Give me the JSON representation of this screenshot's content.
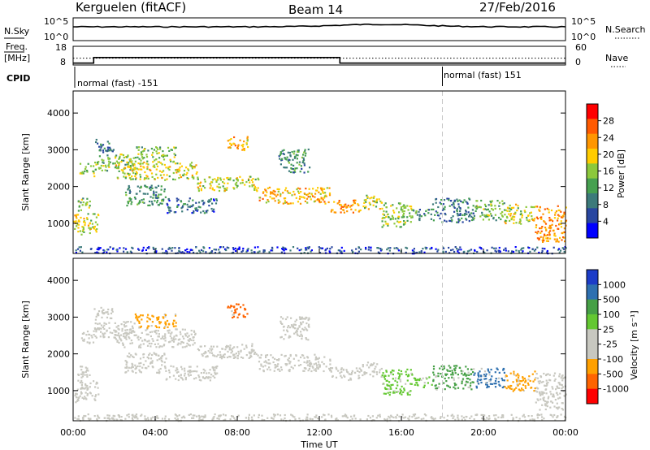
{
  "header": {
    "station": "Kerguelen (fitACF)",
    "beam": "Beam 14",
    "date": "27/Feb/2016"
  },
  "noise_panel": {
    "left_label": "N.Sky",
    "right_label": "N.Search",
    "left_ticks": [
      "10^5",
      "10^0"
    ],
    "right_ticks": [
      "10^5",
      "10^0"
    ]
  },
  "freq_panel": {
    "left_label_1": "Freq.",
    "left_label_2": "[MHz]",
    "left_ticks": [
      "18",
      "8"
    ],
    "right_label": "Nave",
    "right_ticks": [
      "60",
      "0"
    ]
  },
  "cpid_panel": {
    "label": "CPID",
    "modes": [
      {
        "name": "normal (fast) -151",
        "start_hour": 0
      },
      {
        "name": "normal (fast) 151",
        "start_hour": 18
      }
    ]
  },
  "power_panel": {
    "ylabel": "Slant Range [km]",
    "colorbar_label": "Power [dB]",
    "colorbar_ticks": [
      "28",
      "24",
      "20",
      "16",
      "12",
      "8",
      "4"
    ]
  },
  "velocity_panel": {
    "ylabel": "Slant Range [km]",
    "colorbar_label": "Velocity [m s⁻¹]",
    "colorbar_ticks": [
      "1000",
      "500",
      "100",
      "25",
      "-25",
      "-100",
      "-500",
      "-1000"
    ]
  },
  "xaxis": {
    "label": "Time UT",
    "ticks": [
      "00:00",
      "04:00",
      "08:00",
      "12:00",
      "16:00",
      "20:00",
      "00:00"
    ]
  },
  "chart_data": {
    "type": "heatmap",
    "x_range_hours": [
      0,
      24
    ],
    "y_range_km": [
      180,
      4600
    ],
    "y_ticks_km": [
      1000,
      2000,
      3000,
      4000
    ],
    "x_tick_hours": [
      0,
      4,
      8,
      12,
      16,
      20,
      24
    ],
    "grid": false,
    "frequency_mhz": [
      {
        "start": 0,
        "end": 1,
        "value": 9
      },
      {
        "start": 1,
        "end": 13,
        "value": 12
      },
      {
        "start": 13,
        "end": 24,
        "value": 9
      }
    ],
    "nave_reference": 22,
    "power_colors": [
      "#0000ff",
      "#2846a0",
      "#3c7a7a",
      "#46a050",
      "#8cc83c",
      "#ffcc00",
      "#ff9600",
      "#ff5a00",
      "#ff0000"
    ],
    "velocity_colors": {
      "1000": "#1c3cc8",
      "500": "#2e70b0",
      "100": "#46a046",
      "50": "#64c832",
      "25": "#c8c8c0",
      "-25": "#c8c8c0",
      "-100": "#ffa000",
      "-500": "#ff6400",
      "-1000": "#ff0000"
    },
    "echo_regions": [
      {
        "t0": 0.0,
        "t1": 1.2,
        "r0": 700,
        "r1": 1300,
        "power": 20,
        "velocity": -25
      },
      {
        "t0": 0.2,
        "t1": 0.8,
        "r0": 1350,
        "r1": 1700,
        "power": 16,
        "velocity": -25
      },
      {
        "t0": 0.3,
        "t1": 1.0,
        "r0": 2300,
        "r1": 2650,
        "power": 18,
        "velocity": 25
      },
      {
        "t0": 1.0,
        "t1": 3.0,
        "r0": 2450,
        "r1": 2900,
        "power": 16,
        "velocity": 25
      },
      {
        "t0": 1.0,
        "t1": 2.0,
        "r0": 2950,
        "r1": 3300,
        "power": 10,
        "velocity": 25
      },
      {
        "t0": 2.0,
        "t1": 6.0,
        "r0": 2200,
        "r1": 2700,
        "power": 20,
        "velocity": 25
      },
      {
        "t0": 3.0,
        "t1": 5.0,
        "r0": 2700,
        "r1": 3100,
        "power": 16,
        "velocity": -100
      },
      {
        "t0": 2.5,
        "t1": 4.5,
        "r0": 1500,
        "r1": 2050,
        "power": 12,
        "velocity": 25
      },
      {
        "t0": 4.5,
        "t1": 7.0,
        "r0": 1300,
        "r1": 1700,
        "power": 8,
        "velocity": 25
      },
      {
        "t0": 6.0,
        "t1": 9.0,
        "r0": 1900,
        "r1": 2300,
        "power": 20,
        "velocity": 25
      },
      {
        "t0": 7.5,
        "t1": 8.5,
        "r0": 3000,
        "r1": 3400,
        "power": 24,
        "velocity": -500
      },
      {
        "t0": 9.0,
        "t1": 12.5,
        "r0": 1550,
        "r1": 2000,
        "power": 24,
        "velocity": 25
      },
      {
        "t0": 10.0,
        "t1": 11.5,
        "r0": 2400,
        "r1": 3050,
        "power": 12,
        "velocity": 25
      },
      {
        "t0": 12.5,
        "t1": 14.0,
        "r0": 1300,
        "r1": 1650,
        "power": 26,
        "velocity": 25
      },
      {
        "t0": 14.0,
        "t1": 15.0,
        "r0": 1400,
        "r1": 1800,
        "power": 20,
        "velocity": 25
      },
      {
        "t0": 15.0,
        "t1": 16.5,
        "r0": 900,
        "r1": 1600,
        "power": 18,
        "velocity": 50
      },
      {
        "t0": 16.5,
        "t1": 17.5,
        "r0": 1100,
        "r1": 1400,
        "power": 12,
        "velocity": 50
      },
      {
        "t0": 17.5,
        "t1": 19.5,
        "r0": 1050,
        "r1": 1700,
        "power": 10,
        "velocity": 100
      },
      {
        "t0": 19.5,
        "t1": 21.0,
        "r0": 1100,
        "r1": 1650,
        "power": 16,
        "velocity": 500
      },
      {
        "t0": 21.0,
        "t1": 22.5,
        "r0": 1000,
        "r1": 1550,
        "power": 20,
        "velocity": -100
      },
      {
        "t0": 22.5,
        "t1": 24.0,
        "r0": 500,
        "r1": 1500,
        "power": 26,
        "velocity": 25
      },
      {
        "t0": 0.0,
        "t1": 24.0,
        "r0": 200,
        "r1": 380,
        "power": 6,
        "velocity": -25
      }
    ]
  }
}
